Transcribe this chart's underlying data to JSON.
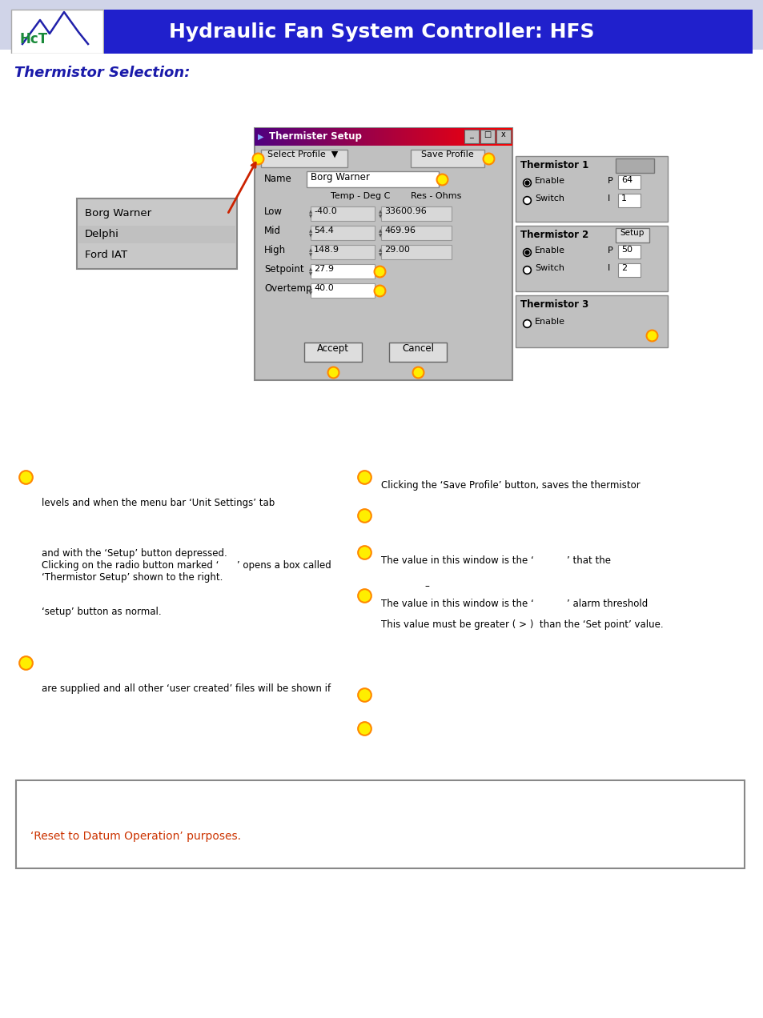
{
  "title": "Hydraulic Fan System Controller: HFS",
  "section_title": "Thermistor Selection:",
  "header_bg": "#2020cc",
  "header_text_color": "#ffffff",
  "section_title_color": "#1a1aaa",
  "page_bg": "#ffffff",
  "top_strip_bg": "#d0d4e8",
  "bullet_color": "#ffee00",
  "bullet_outline": "#ff8800",
  "dialog_title": "Thermister Setup",
  "dialog_bg": "#c0c0c0",
  "dropdown_items": [
    "Borg Warner",
    "Delphi",
    "Ford IAT"
  ],
  "name_value": "Borg Warner",
  "low_temp": "-40.0",
  "low_res": "33600.96",
  "mid_temp": "54.4",
  "mid_res": "469.96",
  "high_temp": "148.9",
  "high_res": "29.00",
  "setpoint": "27.9",
  "overtemp": "40.0",
  "therm1_p": "64",
  "therm1_i": "1",
  "therm2_p": "50",
  "therm2_i": "2",
  "bottom_box_text": "‘Reset to Datum Operation’ purposes.",
  "bottom_box_text_color": "#cc3300"
}
